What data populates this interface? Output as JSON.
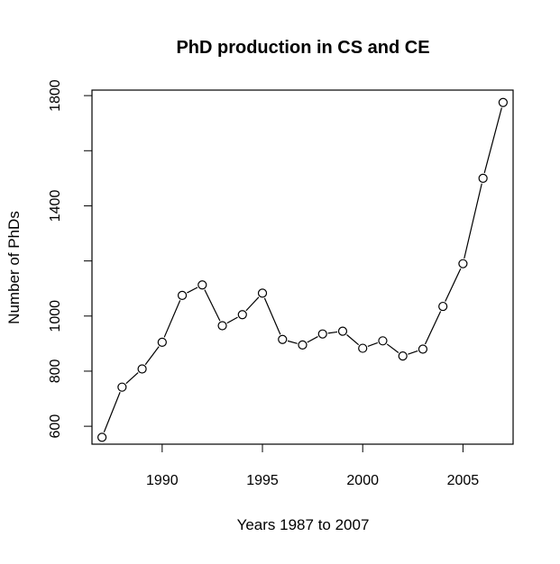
{
  "chart_data": {
    "type": "line",
    "title": "PhD production in CS and CE",
    "xlabel": "Years 1987 to 2007",
    "ylabel": "Number of PhDs",
    "x": [
      1987,
      1988,
      1989,
      1990,
      1991,
      1992,
      1993,
      1994,
      1995,
      1996,
      1997,
      1998,
      1999,
      2000,
      2001,
      2002,
      2003,
      2004,
      2005,
      2006,
      2007
    ],
    "series": [
      {
        "values": [
          560,
          742,
          808,
          905,
          1075,
          1113,
          965,
          1005,
          1083,
          915,
          895,
          935,
          945,
          883,
          910,
          855,
          880,
          1035,
          1190,
          1500,
          1775
        ]
      }
    ],
    "xlim": [
      1986.5,
      2007.5
    ],
    "ylim": [
      535,
      1820
    ],
    "xticks": [
      1990,
      1995,
      2000,
      2005
    ],
    "yticks": [
      600,
      800,
      1000,
      1400,
      1800
    ],
    "yminor_ticks": [
      1200,
      1600
    ],
    "marker": "open-circle",
    "grid": false
  }
}
